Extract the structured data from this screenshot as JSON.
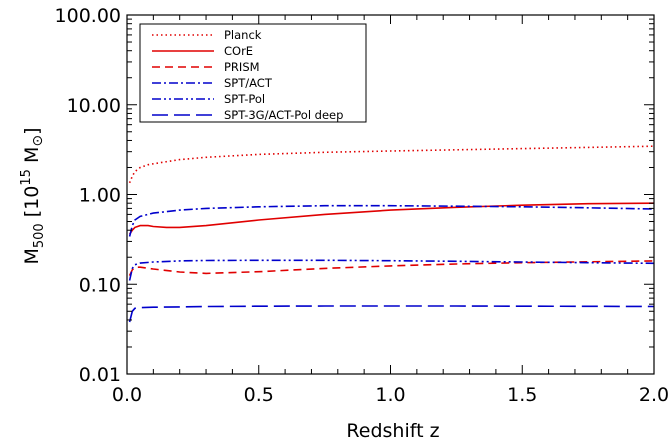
{
  "chart_data": {
    "type": "line",
    "xlabel": "Redshift z",
    "ylabel": {
      "main": "M",
      "sub": "500",
      "bracket_open": "[",
      "base": "10",
      "exp": "15",
      "unit": "M",
      "unit_symbol": "⊙",
      "bracket_close": "]"
    },
    "xlim": [
      0.0,
      2.0
    ],
    "ylim": [
      0.01,
      100
    ],
    "yscale": "log",
    "grid": false,
    "legend_position": "top-left",
    "x_ticks": [
      "0.0",
      "0.5",
      "1.0",
      "1.5",
      "2.0"
    ],
    "y_ticks": [
      "0.01",
      "0.10",
      "1.00",
      "10.00",
      "100.00"
    ],
    "series": [
      {
        "name": "Planck",
        "color": "#e00000",
        "style": "dotted",
        "x": [
          0.01,
          0.02,
          0.03,
          0.05,
          0.08,
          0.1,
          0.2,
          0.3,
          0.5,
          0.75,
          1.0,
          1.25,
          1.5,
          1.75,
          2.0
        ],
        "y": [
          1.35,
          1.6,
          1.8,
          2.0,
          2.15,
          2.2,
          2.45,
          2.6,
          2.8,
          2.95,
          3.05,
          3.15,
          3.25,
          3.35,
          3.45
        ]
      },
      {
        "name": "COrE",
        "color": "#e00000",
        "style": "solid",
        "x": [
          0.01,
          0.02,
          0.03,
          0.05,
          0.08,
          0.1,
          0.15,
          0.2,
          0.3,
          0.5,
          0.75,
          1.0,
          1.25,
          1.5,
          1.75,
          2.0
        ],
        "y": [
          0.36,
          0.4,
          0.43,
          0.45,
          0.45,
          0.44,
          0.43,
          0.43,
          0.45,
          0.52,
          0.6,
          0.67,
          0.72,
          0.76,
          0.79,
          0.8
        ]
      },
      {
        "name": "PRISM",
        "color": "#e00000",
        "style": "dashed",
        "x": [
          0.01,
          0.02,
          0.03,
          0.05,
          0.1,
          0.2,
          0.3,
          0.5,
          0.75,
          1.0,
          1.25,
          1.5,
          1.75,
          2.0
        ],
        "y": [
          0.125,
          0.145,
          0.155,
          0.155,
          0.148,
          0.137,
          0.132,
          0.138,
          0.15,
          0.16,
          0.168,
          0.174,
          0.178,
          0.182
        ]
      },
      {
        "name": "SPT/ACT",
        "color": "#0000cc",
        "style": "dashdot",
        "x": [
          0.01,
          0.02,
          0.03,
          0.05,
          0.1,
          0.2,
          0.3,
          0.5,
          0.75,
          1.0,
          1.25,
          1.5,
          1.75,
          2.0
        ],
        "y": [
          0.34,
          0.45,
          0.52,
          0.57,
          0.62,
          0.67,
          0.7,
          0.73,
          0.75,
          0.75,
          0.74,
          0.73,
          0.71,
          0.69
        ]
      },
      {
        "name": "SPT-Pol",
        "color": "#0000cc",
        "style": "dashdotdot",
        "x": [
          0.01,
          0.02,
          0.03,
          0.05,
          0.1,
          0.2,
          0.3,
          0.5,
          0.75,
          1.0,
          1.25,
          1.5,
          1.75,
          2.0
        ],
        "y": [
          0.11,
          0.15,
          0.165,
          0.172,
          0.177,
          0.182,
          0.184,
          0.185,
          0.185,
          0.183,
          0.18,
          0.177,
          0.174,
          0.171
        ]
      },
      {
        "name": "SPT-3G/ACT-Pol deep",
        "color": "#0000cc",
        "style": "longdash",
        "x": [
          0.01,
          0.02,
          0.03,
          0.05,
          0.1,
          0.2,
          0.3,
          0.5,
          0.75,
          1.0,
          1.25,
          1.5,
          1.75,
          2.0
        ],
        "y": [
          0.038,
          0.05,
          0.054,
          0.055,
          0.0555,
          0.056,
          0.0565,
          0.057,
          0.0572,
          0.0573,
          0.0572,
          0.057,
          0.0568,
          0.0565
        ]
      }
    ]
  }
}
